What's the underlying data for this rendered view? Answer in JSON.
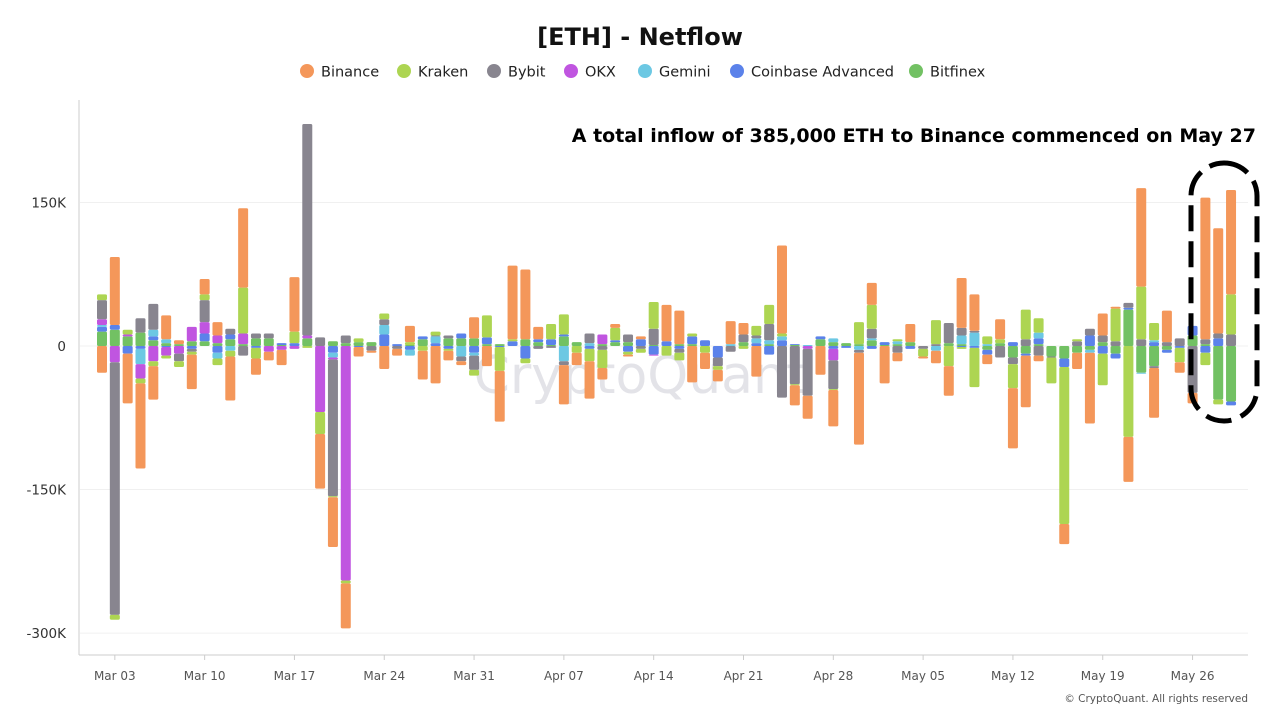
{
  "chart_data": {
    "type": "bar",
    "stacked": true,
    "title": "[ETH] - Netflow",
    "annotation": "A total inflow of 385,000 ETH to Binance commenced on May 27",
    "highlight": "May 27 - May 29",
    "watermark": "CryptoQuant",
    "footer": "© CryptoQuant. All rights reserved",
    "legend_position": "top",
    "grid": true,
    "ylim": [
      -323,
      257
    ],
    "y_ticks": [
      {
        "value": 150,
        "label": "150K"
      },
      {
        "value": 0,
        "label": "0"
      },
      {
        "value": -150,
        "label": "-150K"
      },
      {
        "value": -300,
        "label": "-300K"
      }
    ],
    "x_ticks": [
      "Mar 03",
      "Mar 10",
      "Mar 17",
      "Mar 24",
      "Mar 31",
      "Apr 07",
      "Apr 14",
      "Apr 21",
      "Apr 28",
      "May 05",
      "May 12",
      "May 19",
      "May 26"
    ],
    "dates": [
      "Mar 02",
      "Mar 03",
      "Mar 04",
      "Mar 05",
      "Mar 06",
      "Mar 07",
      "Mar 08",
      "Mar 09",
      "Mar 10",
      "Mar 11",
      "Mar 12",
      "Mar 13",
      "Mar 14",
      "Mar 15",
      "Mar 16",
      "Mar 17",
      "Mar 18",
      "Mar 19",
      "Mar 20",
      "Mar 21",
      "Mar 22",
      "Mar 23",
      "Mar 24",
      "Mar 25",
      "Mar 26",
      "Mar 27",
      "Mar 28",
      "Mar 29",
      "Mar 30",
      "Mar 31",
      "Apr 01",
      "Apr 02",
      "Apr 03",
      "Apr 04",
      "Apr 05",
      "Apr 06",
      "Apr 07",
      "Apr 08",
      "Apr 09",
      "Apr 10",
      "Apr 11",
      "Apr 12",
      "Apr 13",
      "Apr 14",
      "Apr 15",
      "Apr 16",
      "Apr 17",
      "Apr 18",
      "Apr 19",
      "Apr 20",
      "Apr 21",
      "Apr 22",
      "Apr 23",
      "Apr 24",
      "Apr 25",
      "Apr 26",
      "Apr 27",
      "Apr 28",
      "Apr 29",
      "Apr 30",
      "May 01",
      "May 02",
      "May 03",
      "May 04",
      "May 05",
      "May 06",
      "May 07",
      "May 08",
      "May 09",
      "May 10",
      "May 11",
      "May 12",
      "May 13",
      "May 14",
      "May 15",
      "May 16",
      "May 17",
      "May 18",
      "May 19",
      "May 20",
      "May 21",
      "May 22",
      "May 23",
      "May 24",
      "May 25",
      "May 26",
      "May 27",
      "May 28",
      "May 29"
    ],
    "series": [
      {
        "name": "Binance",
        "color": "#F4975A",
        "values": [
          -28,
          71,
          -52,
          -89,
          -35,
          25,
          4,
          -36,
          16,
          14,
          -46,
          83,
          -17,
          -9,
          -16,
          57,
          0,
          -57,
          -52,
          -47,
          -10,
          -2,
          -24,
          -7,
          17,
          -30,
          -39,
          -10,
          -4,
          22,
          -21,
          -53,
          77,
          73,
          13,
          0,
          -41,
          -13,
          -39,
          -12,
          4,
          -2,
          3,
          0,
          38,
          35,
          -38,
          -17,
          -12,
          24,
          12,
          -32,
          0,
          92,
          -21,
          -24,
          -30,
          -38,
          0,
          -96,
          23,
          -39,
          -9,
          19,
          -2,
          -13,
          -31,
          52,
          38,
          -10,
          21,
          -63,
          -54,
          -6,
          0,
          -21,
          -17,
          -74,
          23,
          2,
          -47,
          103,
          -52,
          33,
          -11,
          -11,
          148,
          110,
          109
        ]
      },
      {
        "name": "Kraken",
        "color": "#ADD552",
        "values": [
          6,
          -5,
          5,
          -5,
          -5,
          -3,
          -6,
          -3,
          6,
          -7,
          -6,
          48,
          -11,
          0,
          0,
          12,
          -2,
          -23,
          -1,
          -3,
          4,
          0,
          6,
          0,
          3,
          -5,
          4,
          -2,
          0,
          -6,
          23,
          -25,
          2,
          -5,
          0,
          16,
          21,
          -7,
          -13,
          -19,
          13,
          -3,
          -4,
          28,
          -10,
          -8,
          3,
          -7,
          -4,
          0,
          -3,
          10,
          20,
          3,
          -1,
          0,
          0,
          -1,
          0,
          23,
          25,
          0,
          2,
          0,
          -8,
          25,
          -21,
          -2,
          -41,
          8,
          4,
          -25,
          31,
          15,
          -27,
          -164,
          2,
          0,
          -33,
          34,
          -95,
          55,
          18,
          0,
          -15,
          0,
          -13,
          -5,
          42
        ]
      },
      {
        "name": "Bybit",
        "color": "#88858F",
        "values": [
          20,
          -264,
          0,
          15,
          27,
          0,
          -8,
          -3,
          23,
          0,
          6,
          -10,
          5,
          5,
          0,
          0,
          221,
          9,
          -143,
          8,
          0,
          -5,
          6,
          -3,
          0,
          0,
          1,
          3,
          -5,
          -15,
          0,
          0,
          0,
          0,
          -3,
          -2,
          -4,
          0,
          10,
          -4,
          0,
          8,
          -3,
          17,
          0,
          -4,
          0,
          0,
          -9,
          -6,
          8,
          3,
          17,
          -54,
          -40,
          -49,
          0,
          -30,
          0,
          -3,
          10,
          0,
          -7,
          0,
          -3,
          2,
          21,
          8,
          2,
          0,
          -12,
          -7,
          7,
          -10,
          -1,
          0,
          5,
          7,
          7,
          5,
          5,
          7,
          -2,
          4,
          8,
          -49,
          5,
          5,
          12
        ]
      },
      {
        "name": "OKX",
        "color": "#C055E0",
        "values": [
          6,
          -17,
          2,
          -15,
          -16,
          -9,
          -8,
          15,
          12,
          8,
          0,
          11,
          0,
          -6,
          -4,
          -3,
          3,
          -69,
          -2,
          -245,
          0,
          0,
          0,
          0,
          0,
          0,
          0,
          0,
          0,
          0,
          0,
          0,
          0,
          0,
          0,
          0,
          0,
          0,
          0,
          10,
          0,
          0,
          0,
          -1,
          0,
          0,
          0,
          0,
          0,
          0,
          0,
          0,
          0,
          0,
          0,
          -3,
          0,
          -12,
          0,
          0,
          0,
          0,
          0,
          0,
          0,
          0,
          0,
          0,
          0,
          0,
          0,
          0,
          0,
          0,
          0,
          0,
          0,
          0,
          0,
          0,
          0,
          0,
          0,
          0,
          0,
          0,
          0,
          0,
          0
        ]
      },
      {
        "name": "Gemini",
        "color": "#6CC8E3",
        "values": [
          2,
          0,
          0,
          -16,
          7,
          4,
          0,
          0,
          0,
          -6,
          -5,
          0,
          0,
          0,
          0,
          0,
          0,
          0,
          -5,
          0,
          0,
          0,
          10,
          0,
          -6,
          0,
          7,
          0,
          -11,
          -3,
          0,
          0,
          0,
          0,
          0,
          0,
          -16,
          0,
          3,
          0,
          0,
          0,
          0,
          0,
          0,
          0,
          0,
          0,
          0,
          2,
          0,
          5,
          4,
          4,
          0,
          1,
          0,
          4,
          0,
          -4,
          2,
          0,
          3,
          0,
          0,
          -5,
          0,
          9,
          14,
          2,
          0,
          0,
          0,
          6,
          0,
          0,
          0,
          -3,
          0,
          0,
          0,
          -1,
          2,
          0,
          0,
          0,
          0,
          0,
          0
        ]
      },
      {
        "name": "Coinbase Advanced",
        "color": "#5B82EA",
        "values": [
          5,
          5,
          -8,
          -3,
          4,
          -1,
          0,
          -3,
          8,
          -7,
          5,
          0,
          -2,
          0,
          2,
          3,
          0,
          0,
          -7,
          0,
          -1,
          0,
          12,
          2,
          -4,
          3,
          3,
          -3,
          5,
          -7,
          7,
          -1,
          5,
          -13,
          3,
          6,
          2,
          0,
          -3,
          0,
          2,
          -6,
          7,
          -9,
          5,
          -3,
          8,
          6,
          -12,
          0,
          0,
          3,
          -9,
          6,
          1,
          0,
          3,
          -3,
          -2,
          0,
          -3,
          3,
          0,
          -3,
          0,
          0,
          0,
          -1,
          -2,
          -5,
          0,
          4,
          -2,
          6,
          0,
          -9,
          0,
          11,
          -8,
          -5,
          2,
          0,
          4,
          -3,
          -2,
          10,
          -7,
          8,
          -4
        ]
      },
      {
        "name": "Bitfinex",
        "color": "#72C163",
        "values": [
          15,
          17,
          10,
          14,
          6,
          3,
          2,
          5,
          5,
          3,
          7,
          2,
          8,
          8,
          1,
          0,
          8,
          0,
          5,
          3,
          4,
          4,
          0,
          0,
          1,
          7,
          0,
          8,
          8,
          8,
          2,
          2,
          0,
          7,
          4,
          1,
          10,
          4,
          0,
          2,
          4,
          4,
          0,
          1,
          0,
          2,
          2,
          0,
          0,
          0,
          4,
          0,
          2,
          0,
          1,
          0,
          7,
          4,
          3,
          2,
          6,
          1,
          2,
          4,
          0,
          0,
          3,
          2,
          0,
          -4,
          3,
          -12,
          -8,
          2,
          -11,
          -13,
          -7,
          -4,
          4,
          -8,
          38,
          -28,
          -21,
          -4,
          0,
          11,
          2,
          -56,
          -58
        ]
      }
    ]
  }
}
